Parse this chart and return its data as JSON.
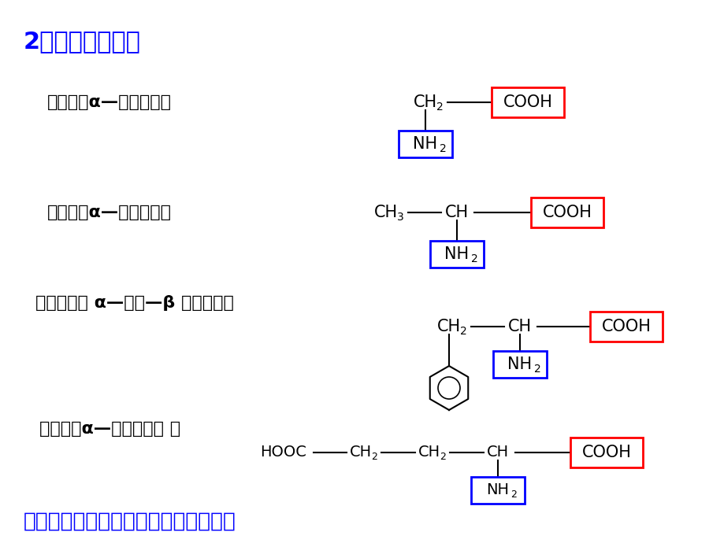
{
  "title": "2、常见的氨基酸",
  "title_color": "#0000FF",
  "title_fontsize": 22,
  "bg_color": "#FFFFFF",
  "label1": "甘氨酸（α—氨基乙酸）",
  "label2": "丙氨酸（α—氨基丙酸）",
  "label3": "苯丙氨酸（ α—氨基—β 苯基丙酸）",
  "label4": "谷氨酸（α—氨基戊二酸 ）",
  "bottom_text": "请说明以上氨基酸在结构上的共同特点",
  "black": "#000000",
  "blue": "#0000FF",
  "red": "#FF0000"
}
